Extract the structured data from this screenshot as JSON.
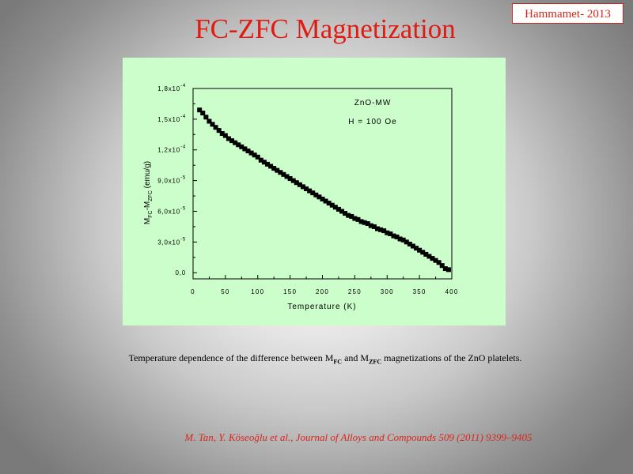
{
  "badge": {
    "text": "Hammamet- 2013"
  },
  "slide": {
    "title": "FC-ZFC Magnetization"
  },
  "caption": {
    "part1": "Temperature  dependence of the difference between M",
    "sub1": "FC",
    "part2": " and M",
    "sub2": "ZFC",
    "part3": " magnetizations  of the ZnO platelets."
  },
  "reference": {
    "text": "M. Tan, Y. Köseoğlu et al., Journal of Alloys and Compounds 509 (2011) 9399–9405"
  },
  "colors": {
    "title": "#e01b12",
    "reference": "#d9261c",
    "plot_bg": "#ccfecc",
    "marker": "#000000"
  },
  "chart_data": {
    "type": "scatter",
    "xlabel": "Temperature (K)",
    "ylabel_main": "M",
    "ylabel_sub1": "FC",
    "ylabel_mid": "-M",
    "ylabel_sub2": "ZFC",
    "ylabel_unit": " (emu/g)",
    "annotations": [
      "ZnO-MW",
      "H = 100 Oe"
    ],
    "xlim": [
      0,
      400
    ],
    "ylim": [
      -6e-06,
      0.00018
    ],
    "xticks": [
      0,
      50,
      100,
      150,
      200,
      250,
      300,
      350,
      400
    ],
    "xtick_labels": [
      "0",
      "50",
      "100",
      "150",
      "200",
      "250",
      "300",
      "350",
      "400"
    ],
    "yticks": [
      0,
      3e-05,
      6e-05,
      9e-05,
      0.00012,
      0.00015,
      0.00018
    ],
    "ytick_labels": [
      {
        "mant": "0,0",
        "exp": ""
      },
      {
        "mant": "3,0x10",
        "exp": "-5"
      },
      {
        "mant": "6,0x10",
        "exp": "-5"
      },
      {
        "mant": "9,0x10",
        "exp": "-5"
      },
      {
        "mant": "1,2x10",
        "exp": "-4"
      },
      {
        "mant": "1,5x10",
        "exp": "-4"
      },
      {
        "mant": "1,8x10",
        "exp": "-4"
      }
    ],
    "grid": false,
    "series": [
      {
        "x": [
          10,
          15,
          20,
          25,
          30,
          35,
          40,
          45,
          50,
          55,
          60,
          65,
          70,
          75,
          80,
          85,
          90,
          95,
          100,
          105,
          110,
          115,
          120,
          125,
          130,
          135,
          140,
          145,
          150,
          155,
          160,
          165,
          170,
          175,
          180,
          185,
          190,
          195,
          200,
          205,
          210,
          215,
          220,
          225,
          230,
          235,
          240,
          245,
          250,
          255,
          260,
          265,
          270,
          275,
          280,
          285,
          290,
          295,
          300,
          305,
          310,
          315,
          320,
          325,
          330,
          335,
          340,
          345,
          350,
          355,
          360,
          365,
          370,
          375,
          380,
          385,
          390,
          395
        ],
        "y": [
          0.000159,
          0.000156,
          0.000152,
          0.000148,
          0.000145,
          0.000142,
          0.000139,
          0.000136,
          0.000134,
          0.000131,
          0.000129,
          0.000127,
          0.000125,
          0.000123,
          0.000121,
          0.000119,
          0.000117,
          0.000115,
          0.000113,
          0.00011,
          0.000108,
          0.000106,
          0.000104,
          0.000102,
          0.0001,
          9.8e-05,
          9.6e-05,
          9.4e-05,
          9.2e-05,
          9e-05,
          8.8e-05,
          8.6e-05,
          8.4e-05,
          8.2e-05,
          8e-05,
          7.8e-05,
          7.6e-05,
          7.4e-05,
          7.2e-05,
          7e-05,
          6.8e-05,
          6.6e-05,
          6.4e-05,
          6.2e-05,
          6e-05,
          5.8e-05,
          5.6e-05,
          5.5e-05,
          5.3e-05,
          5.2e-05,
          5e-05,
          4.9e-05,
          4.8e-05,
          4.6e-05,
          4.5e-05,
          4.3e-05,
          4.2e-05,
          4.1e-05,
          3.9e-05,
          3.8e-05,
          3.6e-05,
          3.5e-05,
          3.3e-05,
          3.2e-05,
          3e-05,
          2.8e-05,
          2.6e-05,
          2.4e-05,
          2.2e-05,
          2e-05,
          1.8e-05,
          1.6e-05,
          1.4e-05,
          1.2e-05,
          1e-05,
          7e-06,
          4e-06,
          3e-06
        ]
      }
    ]
  }
}
